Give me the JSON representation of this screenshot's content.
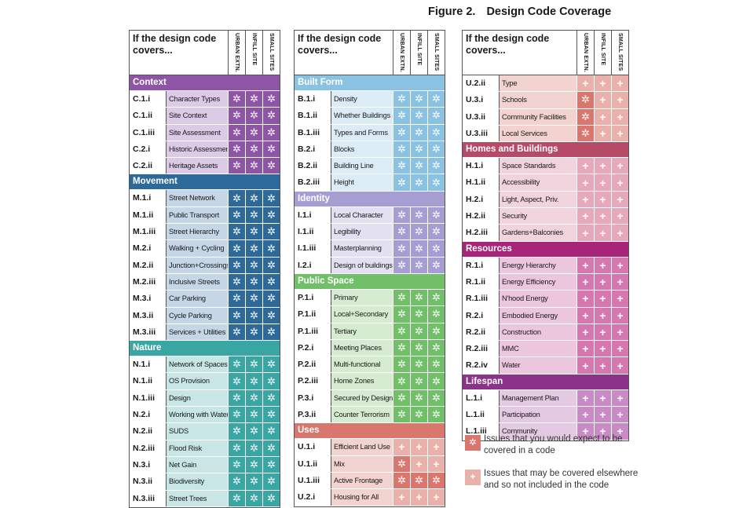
{
  "figure": {
    "number": "Figure 2.",
    "title": "Design Code Coverage"
  },
  "header": {
    "question": "If the design code covers...",
    "cols": [
      "URBAN EXTN.",
      "INFILL SITE",
      "SMALL SITES"
    ]
  },
  "colors": {
    "context": {
      "head": "#8e54a6",
      "light": "#dccae6",
      "dark": "#8e54a6"
    },
    "movement": {
      "head": "#2e6a99",
      "light": "#c5d7e6",
      "dark": "#2e6a99"
    },
    "nature": {
      "head": "#3aa6a4",
      "light": "#c8e6e5",
      "dark": "#3aa6a4"
    },
    "built": {
      "head": "#8ac2e1",
      "light": "#dcecf6",
      "dark": "#8ac2e1"
    },
    "identity": {
      "head": "#a69ed2",
      "light": "#e3e0f1",
      "dark": "#a69ed2"
    },
    "public": {
      "head": "#72bf6a",
      "light": "#d5ecd1",
      "dark": "#72bf6a"
    },
    "uses": {
      "head": "#d9776e",
      "light": "#f3d3cf",
      "dark": "#d9776e",
      "pale": "#eab1aa"
    },
    "homes": {
      "head": "#b74a67",
      "light": "#f0d3dc",
      "pale": "#e7a9b9"
    },
    "resources": {
      "head": "#a8247a",
      "light": "#ecc6dd",
      "pale": "#d777b1"
    },
    "lifespan": {
      "head": "#8b3389",
      "light": "#e4c9e2",
      "pale": "#c88bc6"
    },
    "legend_star": "#d9776e",
    "legend_plus": "#eab1aa"
  },
  "columns": [
    [
      {
        "section": "Context",
        "theme": "context",
        "rows": [
          {
            "code": "C.1.i",
            "label": "Character Types",
            "marks": [
              "star",
              "star",
              "star"
            ]
          },
          {
            "code": "C.1.ii",
            "label": "Site Context",
            "marks": [
              "star",
              "star",
              "star"
            ]
          },
          {
            "code": "C.1.iii",
            "label": "Site Assessment",
            "marks": [
              "star",
              "star",
              "star"
            ]
          },
          {
            "code": "C.2.i",
            "label": "Historic Assessment",
            "marks": [
              "star",
              "star",
              "star"
            ]
          },
          {
            "code": "C.2.ii",
            "label": "Heritage Assets",
            "marks": [
              "star",
              "star",
              "star"
            ]
          }
        ]
      },
      {
        "section": "Movement",
        "theme": "movement",
        "rows": [
          {
            "code": "M.1.i",
            "label": "Street Network",
            "marks": [
              "star",
              "star",
              "star"
            ]
          },
          {
            "code": "M.1.ii",
            "label": "Public Transport",
            "marks": [
              "star",
              "star",
              "star"
            ]
          },
          {
            "code": "M.1.iii",
            "label": "Street Hierarchy",
            "marks": [
              "star",
              "star",
              "star"
            ]
          },
          {
            "code": "M.2.i",
            "label": "Walking + Cycling",
            "marks": [
              "star",
              "star",
              "star"
            ]
          },
          {
            "code": "M.2.ii",
            "label": "Junction+Crossings",
            "marks": [
              "star",
              "star",
              "star"
            ]
          },
          {
            "code": "M.2.iii",
            "label": "Inclusive Streets",
            "marks": [
              "star",
              "star",
              "star"
            ]
          },
          {
            "code": "M.3.i",
            "label": "Car Parking",
            "marks": [
              "star",
              "star",
              "star"
            ]
          },
          {
            "code": "M.3.ii",
            "label": "Cycle Parking",
            "marks": [
              "star",
              "star",
              "star"
            ]
          },
          {
            "code": "M.3.iii",
            "label": "Services + Utilities",
            "marks": [
              "star",
              "star",
              "star"
            ]
          }
        ]
      },
      {
        "section": "Nature",
        "theme": "nature",
        "rows": [
          {
            "code": "N.1.i",
            "label": "Network of Spaces",
            "marks": [
              "star",
              "star",
              "star"
            ]
          },
          {
            "code": "N.1.ii",
            "label": "OS Provision",
            "marks": [
              "star",
              "star",
              "star"
            ]
          },
          {
            "code": "N.1.iii",
            "label": "Design",
            "marks": [
              "star",
              "star",
              "star"
            ]
          },
          {
            "code": "N.2.i",
            "label": "Working with Water",
            "marks": [
              "star",
              "star",
              "star"
            ]
          },
          {
            "code": "N.2.ii",
            "label": "SUDS",
            "marks": [
              "star",
              "star",
              "star"
            ]
          },
          {
            "code": "N.2.iii",
            "label": "Flood Risk",
            "marks": [
              "star",
              "star",
              "star"
            ]
          },
          {
            "code": "N.3.i",
            "label": "Net Gain",
            "marks": [
              "star",
              "star",
              "star"
            ]
          },
          {
            "code": "N.3.ii",
            "label": "Biodiversity",
            "marks": [
              "star",
              "star",
              "star"
            ]
          },
          {
            "code": "N.3.iii",
            "label": "Street Trees",
            "marks": [
              "star",
              "star",
              "star"
            ]
          }
        ]
      }
    ],
    [
      {
        "section": "Built Form",
        "theme": "built",
        "rows": [
          {
            "code": "B.1.i",
            "label": "Density",
            "marks": [
              "star",
              "star",
              "star"
            ]
          },
          {
            "code": "B.1.ii",
            "label": "Whether Buildings Join",
            "marks": [
              "star",
              "star",
              "star"
            ]
          },
          {
            "code": "B.1.iii",
            "label": "Types and Forms",
            "marks": [
              "star",
              "star",
              "star"
            ]
          },
          {
            "code": "B.2.i",
            "label": "Blocks",
            "marks": [
              "star",
              "star",
              "star"
            ]
          },
          {
            "code": "B.2.ii",
            "label": "Building Line",
            "marks": [
              "star",
              "star",
              "star"
            ]
          },
          {
            "code": "B.2.iii",
            "label": "Height",
            "marks": [
              "star",
              "star",
              "star"
            ]
          }
        ]
      },
      {
        "section": "Identity",
        "theme": "identity",
        "rows": [
          {
            "code": "I.1.i",
            "label": "Local Character",
            "marks": [
              "star",
              "star",
              "star"
            ]
          },
          {
            "code": "I.1.ii",
            "label": "Legibility",
            "marks": [
              "star",
              "star",
              "star"
            ]
          },
          {
            "code": "I.1.iii",
            "label": "Masterplanning",
            "marks": [
              "star",
              "star",
              "star"
            ]
          },
          {
            "code": "I.2.i",
            "label": "Design of buildings",
            "marks": [
              "star",
              "star",
              "star"
            ]
          }
        ]
      },
      {
        "section": "Public Space",
        "theme": "public",
        "rows": [
          {
            "code": "P.1.i",
            "label": "Primary",
            "marks": [
              "star",
              "star",
              "star"
            ]
          },
          {
            "code": "P.1.ii",
            "label": "Local+Secondary",
            "marks": [
              "star",
              "star",
              "star"
            ]
          },
          {
            "code": "P.1.iii",
            "label": "Tertiary",
            "marks": [
              "star",
              "star",
              "star"
            ]
          },
          {
            "code": "P.2.i",
            "label": "Meeting Places",
            "marks": [
              "star",
              "star",
              "star"
            ]
          },
          {
            "code": "P.2.ii",
            "label": "Multi-functional",
            "marks": [
              "star",
              "star",
              "star"
            ]
          },
          {
            "code": "P.2.iii",
            "label": "Home Zones",
            "marks": [
              "star",
              "star",
              "star"
            ]
          },
          {
            "code": "P.3.i",
            "label": "Secured by Design",
            "marks": [
              "star",
              "star",
              "star"
            ]
          },
          {
            "code": "P.3.ii",
            "label": "Counter Terrorism",
            "marks": [
              "star",
              "star",
              "star"
            ]
          }
        ]
      },
      {
        "section": "Uses",
        "theme": "uses",
        "rows": [
          {
            "code": "U.1.i",
            "label": "Efficient Land Use",
            "marks": [
              "plus",
              "plus",
              "plus"
            ]
          },
          {
            "code": "U.1.ii",
            "label": "Mix",
            "marks": [
              "star",
              "plus",
              "plus"
            ]
          },
          {
            "code": "U.1.iii",
            "label": "Active Frontage",
            "marks": [
              "star",
              "star",
              "star"
            ]
          },
          {
            "code": "U.2.i",
            "label": "Housing for All",
            "marks": [
              "plus",
              "plus",
              "plus"
            ]
          }
        ]
      }
    ],
    [
      {
        "section": "",
        "theme": "uses",
        "rows": [
          {
            "code": "U.2.ii",
            "label": "Type",
            "marks": [
              "plus",
              "plus",
              "plus"
            ]
          },
          {
            "code": "U.3.i",
            "label": "Schools",
            "marks": [
              "star",
              "plus",
              "plus"
            ]
          },
          {
            "code": "U.3.ii",
            "label": "Community Facilities",
            "marks": [
              "star",
              "plus",
              "plus"
            ]
          },
          {
            "code": "U.3.iii",
            "label": "Local Services",
            "marks": [
              "star",
              "plus",
              "plus"
            ]
          }
        ]
      },
      {
        "section": "Homes and Buildings",
        "theme": "homes",
        "rows": [
          {
            "code": "H.1.i",
            "label": "Space Standards",
            "marks": [
              "plus",
              "plus",
              "plus"
            ]
          },
          {
            "code": "H.1.ii",
            "label": "Accessibility",
            "marks": [
              "plus",
              "plus",
              "plus"
            ]
          },
          {
            "code": "H.2.i",
            "label": "Light, Aspect, Priv.",
            "marks": [
              "plus",
              "plus",
              "plus"
            ]
          },
          {
            "code": "H.2.ii",
            "label": "Security",
            "marks": [
              "plus",
              "plus",
              "plus"
            ]
          },
          {
            "code": "H.2.iii",
            "label": "Gardens+Balconies",
            "marks": [
              "plus",
              "plus",
              "plus"
            ]
          }
        ]
      },
      {
        "section": "Resources",
        "theme": "resources",
        "rows": [
          {
            "code": "R.1.i",
            "label": "Energy Hierarchy",
            "marks": [
              "plus",
              "plus",
              "plus"
            ]
          },
          {
            "code": "R.1.ii",
            "label": "Energy Efficiency",
            "marks": [
              "plus",
              "plus",
              "plus"
            ]
          },
          {
            "code": "R.1.iii",
            "label": "N'hood Energy",
            "marks": [
              "plus",
              "plus",
              "plus"
            ]
          },
          {
            "code": "R.2.i",
            "label": "Embodied Energy",
            "marks": [
              "plus",
              "plus",
              "plus"
            ]
          },
          {
            "code": "R.2.ii",
            "label": "Construction",
            "marks": [
              "plus",
              "plus",
              "plus"
            ]
          },
          {
            "code": "R.2.iii",
            "label": "MMC",
            "marks": [
              "plus",
              "plus",
              "plus"
            ]
          },
          {
            "code": "R.2.iv",
            "label": "Water",
            "marks": [
              "plus",
              "plus",
              "plus"
            ]
          }
        ]
      },
      {
        "section": "Lifespan",
        "theme": "lifespan",
        "rows": [
          {
            "code": "L.1.i",
            "label": "Management Plan",
            "marks": [
              "plus",
              "plus",
              "plus"
            ]
          },
          {
            "code": "L.1.ii",
            "label": "Participation",
            "marks": [
              "plus",
              "plus",
              "plus"
            ]
          },
          {
            "code": "L.1.iii",
            "label": "Community",
            "marks": [
              "plus",
              "plus",
              "plus"
            ]
          }
        ]
      }
    ]
  ],
  "legend": {
    "star_text": "Issues that you would expect to be covered in a code",
    "plus_text": "Issues that may be covered elsewhere and so not included in the code",
    "star_icon": "asterisk-icon",
    "plus_icon": "plus-icon"
  }
}
